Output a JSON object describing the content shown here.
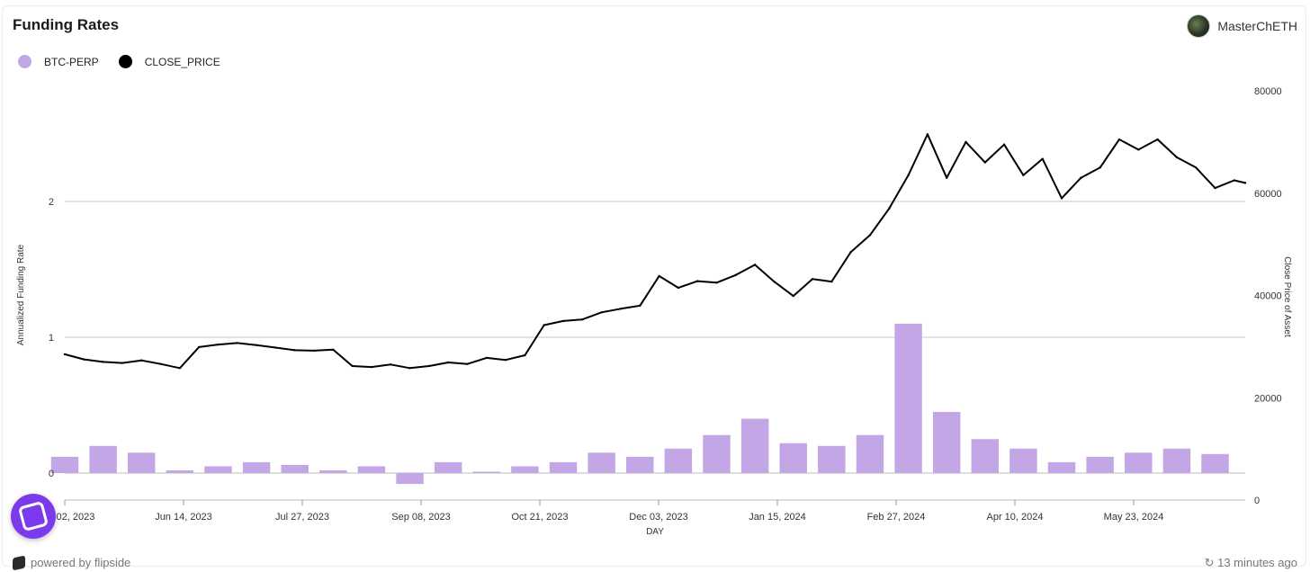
{
  "header": {
    "title": "Funding Rates",
    "username": "MasterChETH"
  },
  "legend": [
    {
      "label": "BTC-PERP",
      "color": "#c2a6e6"
    },
    {
      "label": "CLOSE_PRICE",
      "color": "#000000"
    }
  ],
  "footer": {
    "powered_by": "powered by flipside",
    "updated": "13 minutes ago"
  },
  "chart_data": {
    "type": "bar+line",
    "xlabel": "DAY",
    "ylabel_left": "Annualized Funding Rate",
    "ylabel_right": "Close Price of Asset",
    "x_range": [
      "2023-05-02",
      "2024-07-06"
    ],
    "left_ticks": [
      "0",
      "1",
      "2"
    ],
    "left_ylim": [
      -0.2,
      2.8
    ],
    "right_ticks": [
      "0",
      "20000",
      "40000",
      "60000",
      "80000"
    ],
    "right_ylim": [
      0,
      80000
    ],
    "x_ticks": [
      "May 02, 2023",
      "Jun 14, 2023",
      "Jul 27, 2023",
      "Sep 08, 2023",
      "Oct 21, 2023",
      "Dec 03, 2023",
      "Jan 15, 2024",
      "Feb 27, 2024",
      "Apr 10, 2024",
      "May 23, 2024"
    ],
    "grid": "horizontal",
    "series": [
      {
        "name": "BTC-PERP",
        "kind": "bar",
        "color": "#c2a6e6",
        "dates": [
          "2023-05-02",
          "2023-05-16",
          "2023-05-30",
          "2023-06-13",
          "2023-06-27",
          "2023-07-11",
          "2023-07-25",
          "2023-08-08",
          "2023-08-22",
          "2023-09-05",
          "2023-09-19",
          "2023-10-03",
          "2023-10-17",
          "2023-10-31",
          "2023-11-14",
          "2023-11-28",
          "2023-12-12",
          "2023-12-26",
          "2024-01-09",
          "2024-01-23",
          "2024-02-06",
          "2024-02-20",
          "2024-03-05",
          "2024-03-19",
          "2024-04-02",
          "2024-04-16",
          "2024-04-30",
          "2024-05-14",
          "2024-05-28",
          "2024-06-11",
          "2024-06-25"
        ],
        "values": [
          0.12,
          0.2,
          0.15,
          0.02,
          0.05,
          0.08,
          0.06,
          0.02,
          0.05,
          -0.08,
          0.08,
          0.01,
          0.05,
          0.08,
          0.15,
          0.12,
          0.18,
          0.28,
          0.4,
          0.22,
          0.2,
          0.28,
          1.1,
          0.45,
          0.25,
          0.18,
          0.08,
          0.12,
          0.15,
          0.18,
          0.14
        ]
      },
      {
        "name": "CLOSE_PRICE",
        "kind": "line",
        "color": "#000000",
        "dates": [
          "2023-05-02",
          "2023-05-09",
          "2023-05-16",
          "2023-05-23",
          "2023-05-30",
          "2023-06-06",
          "2023-06-13",
          "2023-06-20",
          "2023-06-27",
          "2023-07-04",
          "2023-07-11",
          "2023-07-18",
          "2023-07-25",
          "2023-08-01",
          "2023-08-08",
          "2023-08-15",
          "2023-08-22",
          "2023-08-29",
          "2023-09-05",
          "2023-09-12",
          "2023-09-19",
          "2023-09-26",
          "2023-10-03",
          "2023-10-10",
          "2023-10-17",
          "2023-10-24",
          "2023-10-31",
          "2023-11-07",
          "2023-11-14",
          "2023-11-21",
          "2023-11-28",
          "2023-12-05",
          "2023-12-12",
          "2023-12-19",
          "2023-12-26",
          "2024-01-02",
          "2024-01-09",
          "2024-01-16",
          "2024-01-23",
          "2024-01-30",
          "2024-02-06",
          "2024-02-13",
          "2024-02-20",
          "2024-02-27",
          "2024-03-05",
          "2024-03-12",
          "2024-03-19",
          "2024-03-26",
          "2024-04-02",
          "2024-04-09",
          "2024-04-16",
          "2024-04-23",
          "2024-04-30",
          "2024-05-07",
          "2024-05-14",
          "2024-05-21",
          "2024-05-28",
          "2024-06-04",
          "2024-06-11",
          "2024-06-18",
          "2024-06-25",
          "2024-07-02",
          "2024-07-06"
        ],
        "values": [
          28500,
          27500,
          27000,
          26800,
          27300,
          26600,
          25800,
          29900,
          30400,
          30700,
          30300,
          29800,
          29300,
          29200,
          29400,
          26200,
          26000,
          26500,
          25800,
          26200,
          26900,
          26600,
          27800,
          27400,
          28300,
          34200,
          35000,
          35300,
          36700,
          37400,
          38000,
          43800,
          41500,
          42800,
          42500,
          44000,
          46000,
          42700,
          39900,
          43200,
          42700,
          48500,
          51800,
          57000,
          63500,
          71500,
          63000,
          70000,
          66000,
          69500,
          63500,
          66700,
          59000,
          63000,
          65000,
          70500,
          68500,
          70500,
          67000,
          65000,
          61000,
          62500,
          62000
        ]
      }
    ]
  }
}
